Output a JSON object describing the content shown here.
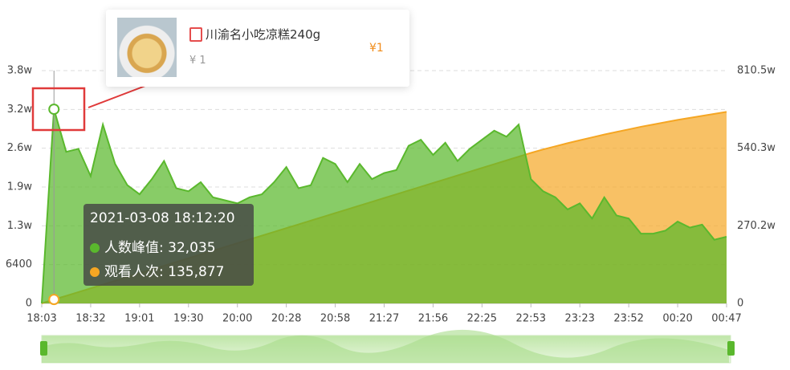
{
  "chart_data": {
    "type": "area",
    "categories": [
      "18:03",
      null,
      null,
      null,
      "18:32",
      null,
      null,
      null,
      "19:01",
      null,
      null,
      null,
      "19:30",
      null,
      null,
      null,
      "20:00",
      null,
      null,
      null,
      "20:28",
      null,
      null,
      null,
      "20:58",
      null,
      null,
      null,
      "21:27",
      null,
      null,
      null,
      "21:56",
      null,
      null,
      null,
      "22:25",
      null,
      null,
      null,
      "22:53",
      null,
      null,
      null,
      "23:23",
      null,
      null,
      null,
      "23:52",
      null,
      null,
      null,
      "00:20",
      null,
      null,
      null,
      "00:47"
    ],
    "series": [
      {
        "name": "观看人次",
        "color": "#f5a623",
        "axis": "y2",
        "values": [
          0,
          135877,
          262000,
          393000,
          524000,
          655000,
          786000,
          917000,
          1048000,
          1179000,
          1310000,
          1441000,
          1572000,
          1703000,
          1834000,
          1965000,
          2096000,
          2227000,
          2358000,
          2489000,
          2620000,
          2751000,
          2882000,
          3013000,
          3144000,
          3275000,
          3406000,
          3537000,
          3668000,
          3799000,
          3930000,
          4061000,
          4192000,
          4323000,
          4454000,
          4585000,
          4716000,
          4847000,
          4978000,
          5109000,
          5240000,
          5360000,
          5470000,
          5580000,
          5680000,
          5780000,
          5880000,
          5970000,
          6060000,
          6150000,
          6230000,
          6310000,
          6390000,
          6460000,
          6530000,
          6600000,
          6670000
        ]
      },
      {
        "name": "人数峰值",
        "color": "#5ab82d",
        "values": [
          0,
          32035,
          25000,
          25500,
          21000,
          29500,
          23000,
          19500,
          18000,
          20500,
          23500,
          19000,
          18500,
          20000,
          17500,
          17000,
          16500,
          17500,
          18000,
          20000,
          22500,
          19000,
          19500,
          24000,
          23000,
          20000,
          23000,
          20500,
          21500,
          22000,
          26000,
          27000,
          24500,
          26500,
          23500,
          25500,
          27000,
          28500,
          27500,
          29500,
          20500,
          18500,
          17500,
          15500,
          16500,
          14000,
          17500,
          14500,
          14000,
          11500,
          11500,
          12000,
          13500,
          12500,
          13000,
          10500,
          11000
        ]
      }
    ],
    "ylim": [
      0,
      38400
    ],
    "yticks": [
      0,
      6400,
      {
        "value": 12800,
        "label": "1.3w"
      },
      {
        "value": 19200,
        "label": "1.9w"
      },
      {
        "value": 25600,
        "label": "2.6w"
      },
      {
        "value": 32000,
        "label": "3.2w"
      },
      {
        "value": 38400,
        "label": "3.8w"
      }
    ],
    "y2lim": [
      0,
      8105000
    ],
    "y2ticks": [
      0,
      {
        "value": 2702000,
        "label": "270.2w"
      },
      {
        "value": 5403000,
        "label": "540.3w"
      },
      {
        "value": 8105000,
        "label": "810.5w"
      }
    ],
    "grid": true,
    "tooltip": {
      "time": "2021-03-08 18:12:20",
      "index": 1,
      "rows": [
        "人数峰值: 32,035",
        "观看人次: 135,877"
      ]
    },
    "product": {
      "name": "川渝名小吃凉糕240g",
      "price": "¥ 1",
      "price_right": "¥1"
    }
  }
}
